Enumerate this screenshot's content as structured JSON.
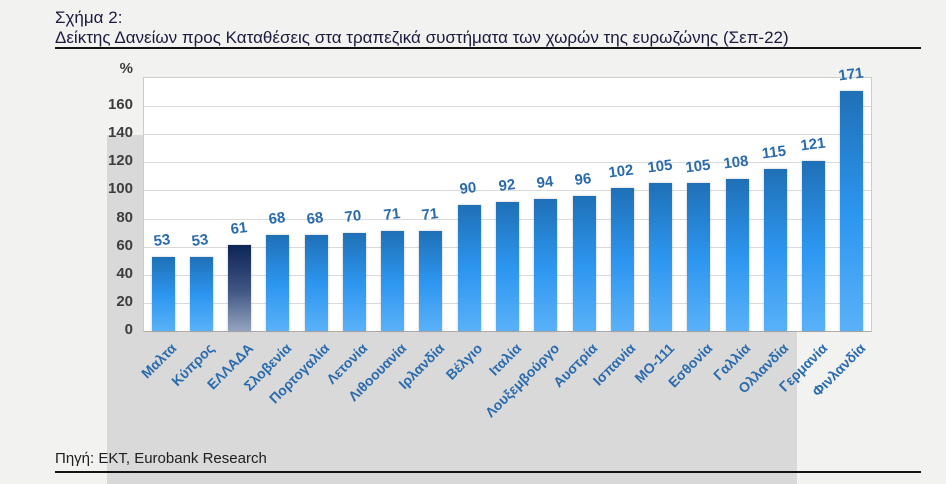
{
  "figure": {
    "label": "Σχήμα 2:",
    "title": "Δείκτης Δανείων προς Καταθέσεις στα τραπεζικά συστήματα των χωρών της ευρωζώνης (Σεπ-22)"
  },
  "source": "Πηγή: ΕΚΤ, Eurobank Research",
  "chart_data": {
    "type": "bar",
    "title": "Δείκτης Δανείων προς Καταθέσεις στα τραπεζικά συστήματα των χωρών της ευρωζώνης (Σεπ-22)",
    "unit_label": "%",
    "categories": [
      "Μαλτα",
      "Κύπρος",
      "ΕΛΛΑΔΑ",
      "Σλοβενία",
      "Πορτογαλία",
      "Λετονία",
      "Λιθοουανία",
      "Ιρλανδία",
      "Βέλγιο",
      "Ιταλία",
      "Λουξεμβούργο",
      "Αυστρία",
      "Ισπανία",
      "ΜΟ-111",
      "Εσθονία",
      "Γαλλία",
      "Ολλανδία",
      "Γερμανία",
      "Φινλανδία"
    ],
    "values": [
      53,
      53,
      61,
      68,
      68,
      70,
      71,
      71,
      90,
      92,
      94,
      96,
      102,
      105,
      105,
      108,
      115,
      121,
      171
    ],
    "highlight_category": "ΕΛΛΑΔΑ",
    "highlight_index": 2,
    "ylim": [
      0,
      180
    ],
    "yticks": [
      0,
      20,
      40,
      60,
      80,
      100,
      120,
      140,
      160
    ],
    "grid": "horizontal",
    "legend": "none",
    "colors": {
      "bar_gradient_top": "#1f70b6",
      "bar_gradient_bottom": "#5ab1f8",
      "highlight_gradient_top": "#0d2458",
      "highlight_gradient_bottom": "#95a3c0",
      "label_blue": "#2a6bad",
      "axis_gray": "#3d3d3d",
      "backdrop_gray": "#d9d9d9"
    }
  }
}
